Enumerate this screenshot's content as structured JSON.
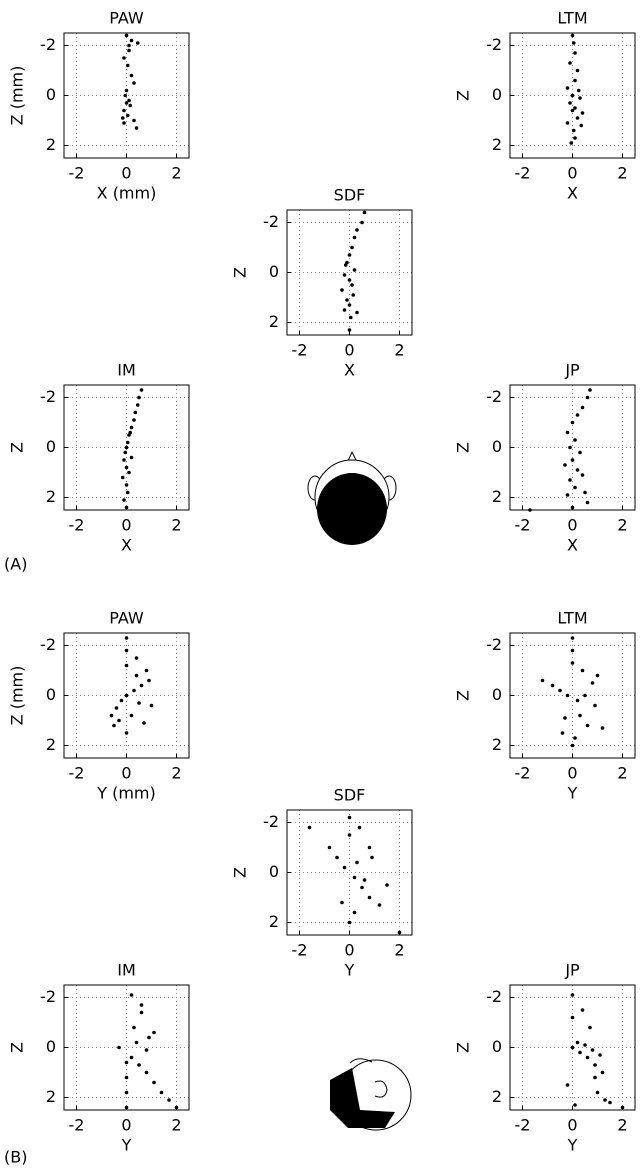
{
  "panel_labels": [
    "(A)",
    "(B)"
  ],
  "chart_data": [
    {
      "type": "scatter",
      "title": "PAW",
      "xlabel": "X (mm)",
      "ylabel": "Z (mm)",
      "color": "#000000",
      "grid": true,
      "xlim": [
        -2.5,
        2.5
      ],
      "ylim": [
        2.5,
        -2.5
      ],
      "xticks": [
        -2,
        0,
        2
      ],
      "yticks": [
        -2,
        0,
        2
      ],
      "x": [
        0,
        0.1,
        -0.1,
        0.05,
        0.2,
        0.3,
        0,
        -0.05,
        0.1,
        0.15,
        -0.1,
        0.05,
        0.3,
        0.4,
        0.1,
        0,
        0.2,
        -0.1,
        0.45,
        -0.15
      ],
      "y": [
        -2.4,
        -2,
        -1.5,
        -1.2,
        -0.8,
        -0.5,
        -0.2,
        0,
        0.2,
        0.4,
        0.6,
        0.8,
        1,
        1.3,
        -1.8,
        0.3,
        -2.2,
        1.1,
        -2.1,
        0.9
      ]
    },
    {
      "type": "scatter",
      "title": "LTM",
      "xlabel": "X",
      "ylabel": "Z",
      "color": "#000000",
      "grid": true,
      "xlim": [
        -2.5,
        2.5
      ],
      "ylim": [
        2.5,
        -2.5
      ],
      "xticks": [
        -2,
        0,
        2
      ],
      "yticks": [
        -2,
        0,
        2
      ],
      "x": [
        0,
        0.05,
        0.1,
        -0.1,
        0.2,
        0.1,
        -0.2,
        0,
        0.3,
        -0.1,
        0.1,
        0.4,
        0.2,
        -0.2,
        0.05,
        0.35,
        0.1,
        -0.05,
        0.25,
        0
      ],
      "y": [
        -2.4,
        -2.1,
        -1.7,
        -1.3,
        -1,
        -0.6,
        -0.3,
        0,
        0.1,
        0.3,
        0.5,
        0.7,
        0.9,
        1.1,
        1.4,
        1.2,
        1.7,
        1.9,
        -0.2,
        0.6
      ]
    },
    {
      "type": "scatter",
      "title": "SDF",
      "xlabel": "X",
      "ylabel": "Z",
      "color": "#000000",
      "grid": true,
      "xlim": [
        -2.5,
        2.5
      ],
      "ylim": [
        2.5,
        -2.5
      ],
      "xticks": [
        -2,
        0,
        2
      ],
      "yticks": [
        -2,
        0,
        2
      ],
      "x": [
        0.6,
        0.5,
        0.3,
        0.2,
        0.1,
        0,
        -0.1,
        0.2,
        -0.2,
        0,
        0.1,
        -0.3,
        0.15,
        -0.1,
        0,
        -0.2,
        0.05,
        0.3,
        -0.15,
        0
      ],
      "y": [
        -2.4,
        -2,
        -1.7,
        -1.4,
        -1,
        -0.7,
        -0.4,
        -0.1,
        0.1,
        0.3,
        0.5,
        0.7,
        0.9,
        1.1,
        1.3,
        1.5,
        1.8,
        1.6,
        -0.3,
        2.3
      ]
    },
    {
      "type": "scatter",
      "title": "IM",
      "xlabel": "X",
      "ylabel": "Z",
      "color": "#000000",
      "grid": true,
      "xlim": [
        -2.5,
        2.5
      ],
      "ylim": [
        2.5,
        -2.5
      ],
      "xticks": [
        -2,
        0,
        2
      ],
      "yticks": [
        -2,
        0,
        2
      ],
      "x": [
        0.6,
        0.5,
        0.45,
        0.35,
        0.3,
        0.2,
        0.1,
        0.05,
        0,
        -0.05,
        -0.1,
        0,
        0.1,
        -0.15,
        0,
        0.05,
        -0.1,
        0.2,
        0,
        0.15
      ],
      "y": [
        -2.3,
        -2,
        -1.7,
        -1.4,
        -1.1,
        -0.8,
        -0.5,
        -0.2,
        0,
        0.2,
        0.5,
        0.8,
        1,
        1.2,
        1.5,
        1.8,
        2.1,
        0.4,
        2.4,
        -0.6
      ]
    },
    {
      "type": "scatter",
      "title": "JP",
      "xlabel": "X",
      "ylabel": "Z",
      "color": "#000000",
      "grid": true,
      "xlim": [
        -2.5,
        2.5
      ],
      "ylim": [
        2.5,
        -2.5
      ],
      "xticks": [
        -2,
        0,
        2
      ],
      "yticks": [
        -2,
        0,
        2
      ],
      "x": [
        0.7,
        0.6,
        0.4,
        0.2,
        0,
        -0.2,
        0.1,
        -0.1,
        0.3,
        0,
        -0.3,
        0.2,
        0.4,
        -0.1,
        0.1,
        0.5,
        0.6,
        -0.2,
        0,
        -1.7
      ],
      "y": [
        -2.3,
        -2,
        -1.6,
        -1.3,
        -1,
        -0.6,
        -0.3,
        0,
        0.2,
        0.5,
        0.7,
        0.9,
        1.1,
        1.3,
        1.6,
        1.8,
        2.2,
        1.9,
        2.4,
        2.5
      ]
    },
    {
      "type": "scatter",
      "title": "PAW",
      "xlabel": "Y (mm)",
      "ylabel": "Z (mm)",
      "color": "#000000",
      "grid": true,
      "xlim": [
        -2.5,
        2.5
      ],
      "ylim": [
        2.5,
        -2.5
      ],
      "xticks": [
        -2,
        0,
        2
      ],
      "yticks": [
        -2,
        0,
        2
      ],
      "x": [
        0,
        0,
        0,
        0.4,
        0.8,
        -0.6,
        -0.4,
        -0.2,
        0,
        0.3,
        0.6,
        0.9,
        0.5,
        -0.3,
        0.2,
        0.7,
        -0.5,
        0.4,
        1,
        0
      ],
      "y": [
        -2.3,
        -1.8,
        -1.2,
        -1.5,
        -1,
        0.8,
        0.5,
        0.2,
        0,
        -0.2,
        -0.4,
        -0.6,
        0.3,
        1,
        0.8,
        1.1,
        1.2,
        -0.8,
        0.4,
        1.5
      ]
    },
    {
      "type": "scatter",
      "title": "LTM",
      "xlabel": "Y",
      "ylabel": "Z",
      "color": "#000000",
      "grid": true,
      "xlim": [
        -2.5,
        2.5
      ],
      "ylim": [
        2.5,
        -2.5
      ],
      "xticks": [
        -2,
        0,
        2
      ],
      "yticks": [
        -2,
        0,
        2
      ],
      "x": [
        0,
        0,
        0,
        -1.2,
        -0.8,
        -0.5,
        -0.2,
        0.2,
        0.5,
        0.8,
        1,
        0.3,
        -0.3,
        0.6,
        1.2,
        0.1,
        -0.4,
        0.9,
        0.4,
        0
      ],
      "y": [
        -2.3,
        -1.8,
        -1.3,
        -0.6,
        -0.4,
        -0.2,
        0,
        0.2,
        0,
        -0.5,
        -0.8,
        0.8,
        0.9,
        1.2,
        1.3,
        1.7,
        1.5,
        0.4,
        -1,
        2
      ]
    },
    {
      "type": "scatter",
      "title": "SDF",
      "xlabel": "Y",
      "ylabel": "Z",
      "color": "#000000",
      "grid": true,
      "xlim": [
        -2.5,
        2.5
      ],
      "ylim": [
        2.5,
        -2.5
      ],
      "xticks": [
        -2,
        0,
        2
      ],
      "yticks": [
        -2,
        0,
        2
      ],
      "x": [
        -1.6,
        0,
        0,
        0.4,
        0.8,
        -0.8,
        -0.5,
        -0.2,
        0.2,
        0.5,
        0.8,
        1.2,
        0.3,
        -0.3,
        0.6,
        0.9,
        0,
        0.2,
        1.5,
        2
      ],
      "y": [
        -1.8,
        -2.2,
        -1.5,
        -1.8,
        -1,
        -1,
        -0.6,
        -0.2,
        0.2,
        0.6,
        1,
        1.3,
        -0.4,
        1.2,
        0.3,
        -0.6,
        2,
        1.6,
        0.5,
        2.4
      ]
    },
    {
      "type": "scatter",
      "title": "IM",
      "xlabel": "Y",
      "ylabel": "Z",
      "color": "#000000",
      "grid": true,
      "xlim": [
        -2.5,
        2.5
      ],
      "ylim": [
        2.5,
        -2.5
      ],
      "xticks": [
        -2,
        0,
        2
      ],
      "yticks": [
        -2,
        0,
        2
      ],
      "x": [
        0,
        0,
        0,
        0.2,
        0.5,
        0.8,
        1.1,
        1.4,
        1.7,
        2,
        0.3,
        0.6,
        0.9,
        -0.3,
        0.4,
        0.8,
        0.2,
        0.6,
        1.1,
        0
      ],
      "y": [
        2.4,
        1.8,
        1.2,
        0.4,
        0.7,
        1,
        1.4,
        1.8,
        2.1,
        2.4,
        -0.8,
        -1.4,
        -0.4,
        0,
        -0.2,
        0.1,
        -2.1,
        -1.7,
        -0.6,
        0.6
      ]
    },
    {
      "type": "scatter",
      "title": "JP",
      "xlabel": "Y",
      "ylabel": "Z",
      "color": "#000000",
      "grid": true,
      "xlim": [
        -2.5,
        2.5
      ],
      "ylim": [
        2.5,
        -2.5
      ],
      "xticks": [
        -2,
        0,
        2
      ],
      "yticks": [
        -2,
        0,
        2
      ],
      "x": [
        0,
        0,
        0,
        0.3,
        0.6,
        0.9,
        1.2,
        0.2,
        0.5,
        0.8,
        1.1,
        -0.2,
        0.4,
        0.7,
        1,
        1.3,
        0.1,
        0.9,
        1.5,
        2
      ],
      "y": [
        -2.1,
        -1.2,
        0,
        0.2,
        0.4,
        0.7,
        1,
        -0.2,
        -0.1,
        0.1,
        0.3,
        1.5,
        -1.5,
        -0.8,
        1.8,
        2.1,
        2.3,
        1.2,
        2.2,
        2.4
      ]
    }
  ]
}
